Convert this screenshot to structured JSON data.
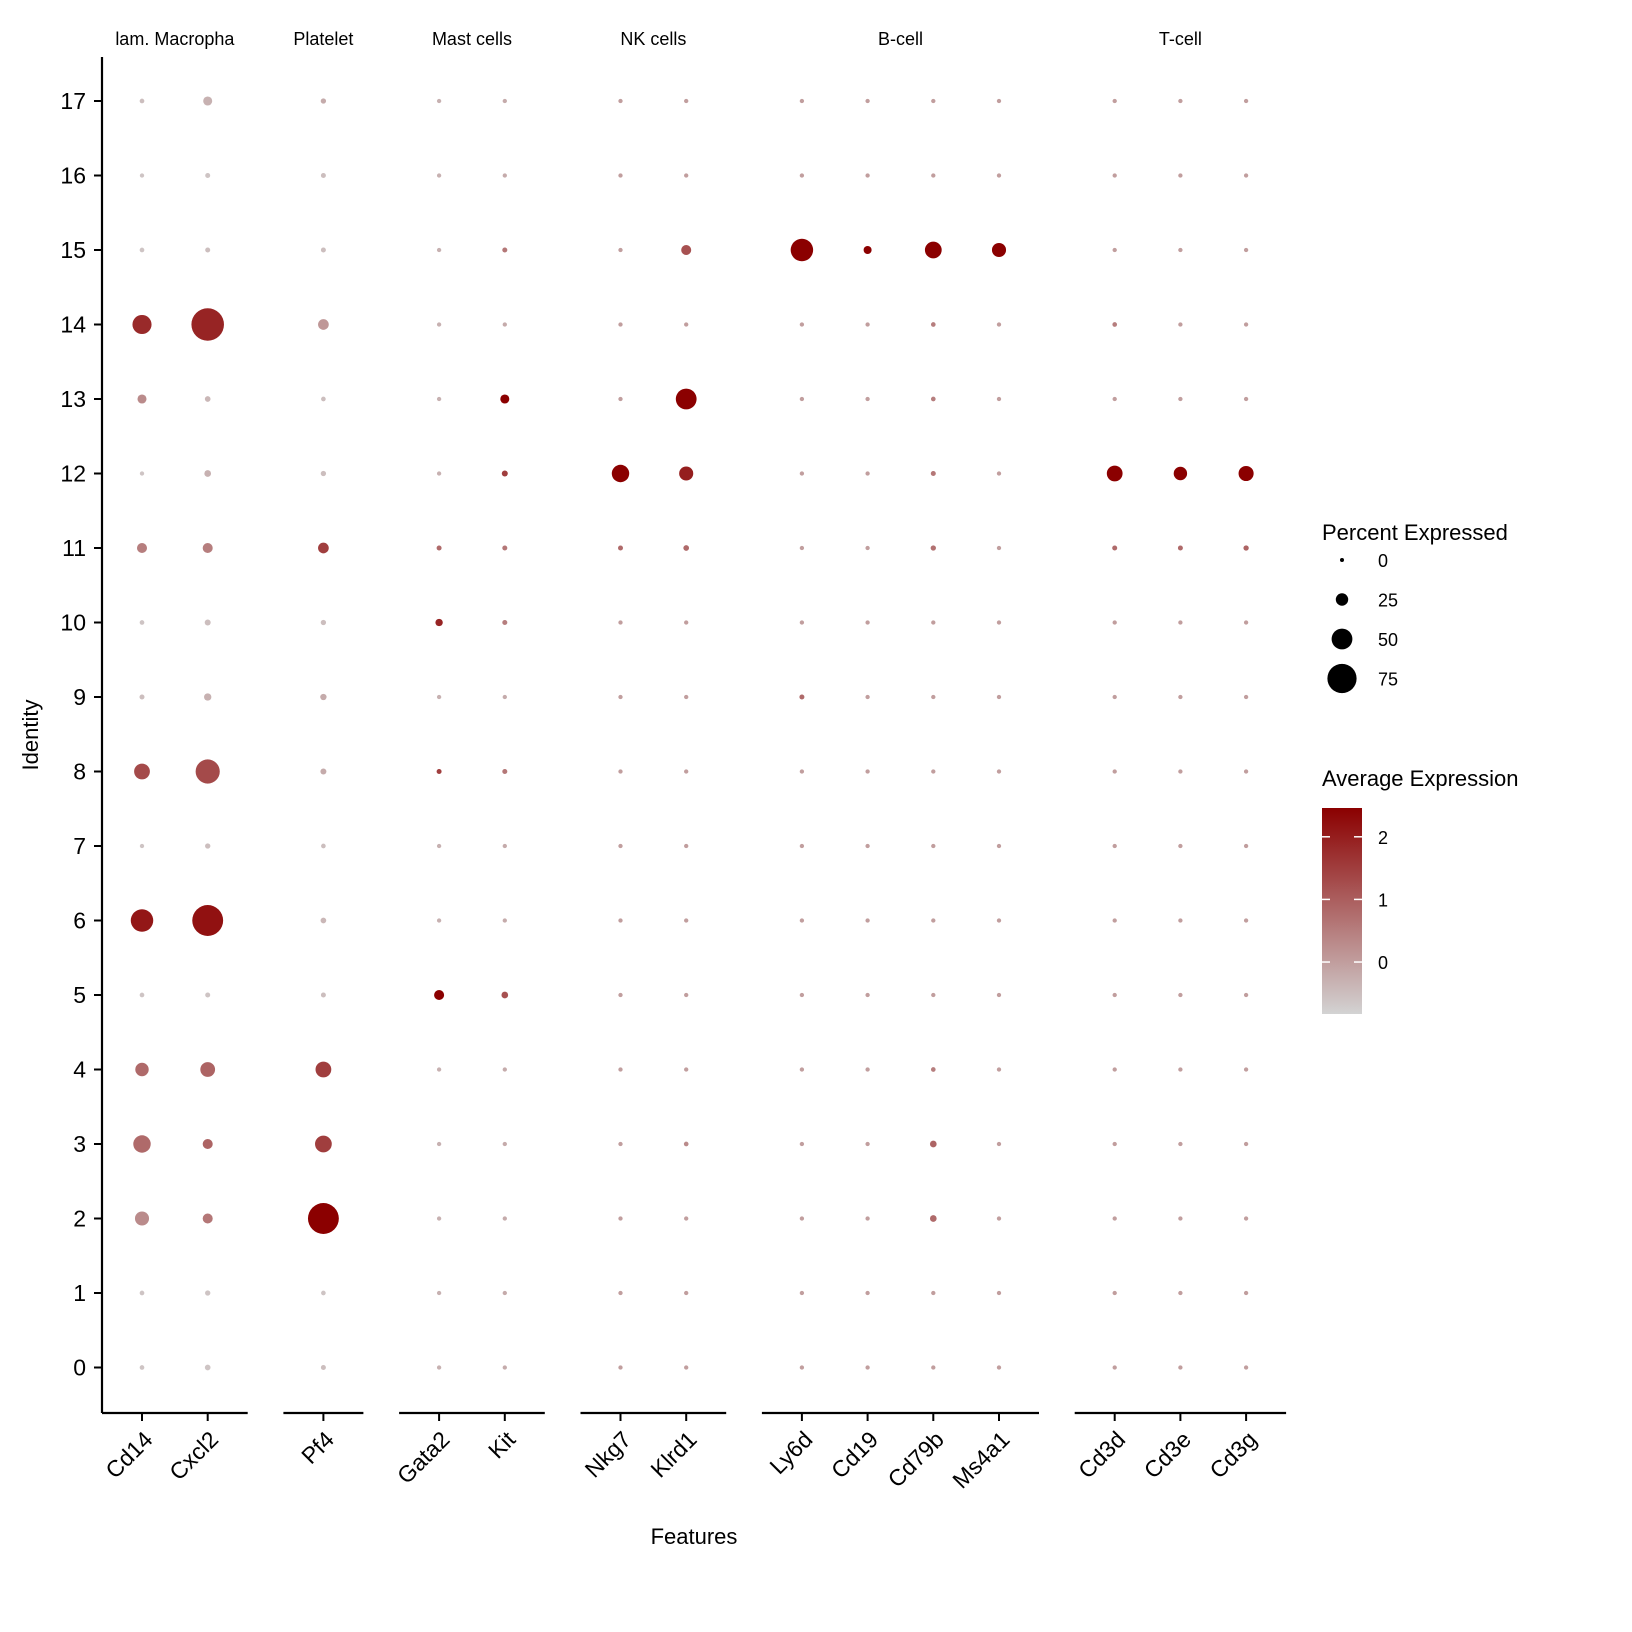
{
  "chart_data": {
    "type": "dotplot",
    "xlabel": "Features",
    "ylabel": "Identity",
    "identities": [
      "0",
      "1",
      "2",
      "3",
      "4",
      "5",
      "6",
      "7",
      "8",
      "9",
      "10",
      "11",
      "12",
      "13",
      "14",
      "15",
      "16",
      "17"
    ],
    "groups": [
      {
        "label": "lam. Macropha",
        "genes": [
          "Cd14",
          "Cxcl2"
        ]
      },
      {
        "label": "Platelet",
        "genes": [
          "Pf4"
        ]
      },
      {
        "label": "Mast cells",
        "genes": [
          "Gata2",
          "Kit"
        ]
      },
      {
        "label": "NK cells",
        "genes": [
          "Nkg7",
          "Klrd1"
        ]
      },
      {
        "label": "B-cell",
        "genes": [
          "Ly6d",
          "Cd19",
          "Cd79b",
          "Ms4a1"
        ]
      },
      {
        "label": "T-cell",
        "genes": [
          "Cd3d",
          "Cd3e",
          "Cd3g"
        ]
      }
    ],
    "genes": {
      "Cd14": {
        "pct": [
          2,
          2,
          30,
          40,
          28,
          2,
          55,
          1,
          35,
          3,
          2,
          18,
          1,
          15,
          45,
          2,
          1,
          2
        ],
        "avg": [
          -0.6,
          -0.6,
          0.3,
          0.8,
          0.8,
          -0.6,
          2.1,
          -0.6,
          1.3,
          -0.5,
          -0.6,
          0.5,
          -0.6,
          0.3,
          1.8,
          -0.6,
          -0.6,
          -0.5
        ]
      },
      "Cxcl2": {
        "pct": [
          5,
          4,
          18,
          18,
          32,
          3,
          80,
          4,
          60,
          10,
          6,
          18,
          8,
          5,
          85,
          3,
          3,
          15
        ],
        "avg": [
          -0.6,
          -0.6,
          0.6,
          0.9,
          0.9,
          -0.6,
          2.2,
          -0.5,
          1.3,
          -0.3,
          -0.5,
          0.5,
          -0.3,
          -0.4,
          1.9,
          -0.5,
          -0.6,
          -0.3
        ]
      },
      "Pf4": {
        "pct": [
          3,
          2,
          80,
          38,
          35,
          3,
          5,
          2,
          6,
          7,
          4,
          20,
          4,
          2,
          20,
          3,
          3,
          4
        ],
        "avg": [
          -0.5,
          -0.6,
          2.5,
          1.5,
          1.5,
          -0.5,
          -0.4,
          -0.5,
          -0.2,
          -0.2,
          -0.5,
          1.5,
          -0.5,
          -0.5,
          0.1,
          -0.5,
          -0.5,
          -0.2
        ]
      },
      "Gata2": {
        "pct": [
          1,
          1,
          1,
          1,
          1,
          18,
          1,
          1,
          3,
          1,
          10,
          3,
          1,
          1,
          1,
          1,
          1,
          1
        ],
        "avg": [
          -0.3,
          -0.3,
          -0.3,
          -0.3,
          -0.3,
          2.5,
          -0.3,
          -0.3,
          1.5,
          -0.3,
          1.9,
          0.8,
          -0.3,
          -0.3,
          -0.3,
          -0.3,
          -0.3,
          -0.3
        ]
      },
      "Kit": {
        "pct": [
          1,
          1,
          1,
          1,
          1,
          8,
          1,
          1,
          3,
          1,
          3,
          3,
          6,
          15,
          1,
          3,
          1,
          1
        ],
        "avg": [
          -0.2,
          -0.2,
          -0.2,
          -0.2,
          -0.2,
          1.2,
          -0.2,
          -0.2,
          0.6,
          -0.2,
          0.5,
          0.6,
          1.5,
          2.5,
          -0.2,
          0.6,
          -0.2,
          -0.2
        ]
      },
      "Nkg7": {
        "pct": [
          1,
          1,
          1,
          1,
          1,
          1,
          1,
          1,
          1,
          1,
          1,
          3,
          40,
          1,
          1,
          1,
          1,
          1
        ],
        "avg": [
          0,
          0,
          0,
          0,
          0,
          0,
          0,
          0,
          0,
          0,
          0,
          0.8,
          2.5,
          0,
          0,
          0,
          0,
          0
        ]
      },
      "Klrd1": {
        "pct": [
          1,
          1,
          1,
          2,
          1,
          1,
          1,
          1,
          1,
          1,
          1,
          5,
          30,
          50,
          1,
          18,
          1,
          1
        ],
        "avg": [
          0,
          0,
          0,
          0.3,
          0,
          0,
          0,
          0,
          0,
          0,
          0,
          0.8,
          2.0,
          2.5,
          0,
          1.2,
          0,
          0
        ]
      },
      "Ly6d": {
        "pct": [
          1,
          1,
          1,
          1,
          1,
          1,
          1,
          1,
          1,
          3,
          1,
          1,
          1,
          1,
          1,
          55,
          1,
          1
        ],
        "avg": [
          0,
          0,
          0,
          0,
          0,
          0,
          0,
          0,
          0,
          0.8,
          0,
          0,
          0,
          0,
          0,
          2.5,
          0,
          0
        ]
      },
      "Cd19": {
        "pct": [
          1,
          1,
          1,
          1,
          1,
          1,
          1,
          1,
          1,
          1,
          1,
          1,
          1,
          1,
          1,
          12,
          1,
          1
        ],
        "avg": [
          0,
          0,
          0,
          0,
          0,
          0,
          0,
          0,
          0,
          0,
          0,
          0,
          0,
          0,
          0,
          2.5,
          0,
          0
        ]
      },
      "Cd79b": {
        "pct": [
          1,
          1,
          8,
          8,
          2,
          1,
          1,
          1,
          1,
          1,
          1,
          4,
          3,
          2,
          2,
          38,
          1,
          1
        ],
        "avg": [
          0,
          0,
          0.8,
          0.9,
          0.5,
          0,
          0,
          0,
          0,
          0,
          0,
          0.7,
          0.6,
          0.5,
          0.5,
          2.5,
          0,
          0
        ]
      },
      "Ms4a1": {
        "pct": [
          1,
          1,
          1,
          1,
          1,
          1,
          1,
          1,
          1,
          1,
          1,
          1,
          1,
          1,
          1,
          30,
          1,
          1
        ],
        "avg": [
          0,
          0,
          0,
          0,
          0,
          0,
          0,
          0,
          0,
          0,
          0,
          0,
          0,
          0,
          0,
          2.5,
          0,
          0
        ]
      },
      "Cd3d": {
        "pct": [
          1,
          1,
          1,
          1,
          1,
          1,
          1,
          1,
          1,
          1,
          1,
          3,
          35,
          1,
          2,
          1,
          1,
          1
        ],
        "avg": [
          0,
          0,
          0,
          0,
          0,
          0,
          0,
          0,
          0,
          0,
          0,
          0.8,
          2.5,
          0,
          0.5,
          0,
          0,
          0
        ]
      },
      "Cd3e": {
        "pct": [
          1,
          1,
          1,
          1,
          1,
          1,
          1,
          1,
          1,
          1,
          1,
          3,
          28,
          1,
          1,
          1,
          1,
          1
        ],
        "avg": [
          0,
          0,
          0,
          0,
          0,
          0,
          0,
          0,
          0,
          0,
          0,
          0.8,
          2.5,
          0,
          0,
          0,
          0,
          0
        ]
      },
      "Cd3g": {
        "pct": [
          1,
          1,
          1,
          1,
          1,
          1,
          1,
          1,
          1,
          1,
          1,
          4,
          33,
          1,
          1,
          1,
          1,
          1
        ],
        "avg": [
          0,
          0,
          0,
          0,
          0,
          0,
          0,
          0,
          0,
          0,
          0,
          0.9,
          2.5,
          0,
          0,
          0,
          0,
          0
        ]
      }
    },
    "size_legend": {
      "title": "Percent Expressed",
      "breaks": [
        0,
        25,
        50,
        75
      ],
      "labels": [
        "0",
        "25",
        "50",
        "75"
      ]
    },
    "color_legend": {
      "title": "Average Expression",
      "breaks": [
        0,
        1,
        2
      ],
      "labels": [
        "0",
        "1",
        "2"
      ],
      "range": [
        -0.83,
        2.46
      ],
      "low_color": "#d3d3d3",
      "high_color": "#8b0000"
    },
    "grid": false,
    "legend_placement": "right"
  }
}
